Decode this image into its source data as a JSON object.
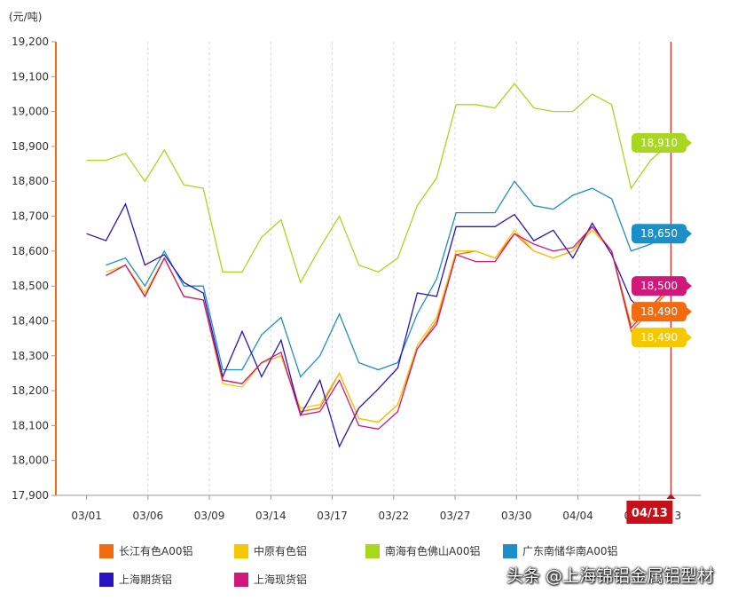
{
  "chart_data": {
    "type": "line",
    "unit_label": "(元/吨)",
    "ylim": [
      17900,
      19200
    ],
    "y_ticks": [
      17900,
      18000,
      18100,
      18200,
      18300,
      18400,
      18500,
      18600,
      18700,
      18800,
      18900,
      19000,
      19100,
      19200
    ],
    "y_tick_labels": [
      "17,900",
      "18,000",
      "18,100",
      "18,200",
      "18,300",
      "18,400",
      "18,500",
      "18,600",
      "18,700",
      "18,800",
      "18,900",
      "19,000",
      "19,100",
      "19,200"
    ],
    "x_tick_labels": [
      "03/01",
      "03/06",
      "03/09",
      "03/14",
      "03/17",
      "03/22",
      "03/27",
      "03/30",
      "04/04",
      "04/10"
    ],
    "x_tick_positions": [
      0,
      2,
      4,
      6,
      8,
      10,
      12,
      14,
      16,
      18
    ],
    "x_range": [
      -1,
      20
    ],
    "current_date": "04/13",
    "current_date_trailing": "3",
    "series": [
      {
        "name": "长江有色A00铝",
        "color": "#f26c0f",
        "values": [
          null,
          18530,
          18560,
          18470,
          18580,
          18470,
          18460,
          18230,
          18220,
          18280,
          18300,
          18140,
          18150,
          18250,
          18120,
          18110,
          18160,
          18320,
          18400,
          18590,
          18600,
          18580,
          18650,
          18600,
          18580,
          18600,
          18670,
          18600,
          18370,
          18430,
          18490
        ],
        "end_label": "18,490"
      },
      {
        "name": "中原有色铝",
        "color": "#f5c800",
        "values": [
          null,
          18540,
          18560,
          18480,
          18580,
          18470,
          18460,
          18220,
          18210,
          18280,
          18300,
          18150,
          18160,
          18250,
          18120,
          18110,
          18160,
          18330,
          18410,
          18600,
          18600,
          18580,
          18660,
          18600,
          18580,
          18600,
          18660,
          18600,
          18390,
          18440,
          18490
        ],
        "end_label": "18,490"
      },
      {
        "name": "南海有色佛山A00铝",
        "color": "#a8d81e",
        "values": [
          18860,
          18860,
          18880,
          18800,
          18890,
          18790,
          18780,
          18540,
          18540,
          18640,
          18690,
          18510,
          18610,
          18700,
          18560,
          18540,
          18580,
          18730,
          18810,
          19020,
          19020,
          19010,
          19080,
          19010,
          19000,
          19000,
          19050,
          19020,
          18780,
          18860,
          18910
        ],
        "end_label": "18,910"
      },
      {
        "name": "广东南储华南A00铝",
        "color": "#1a8fc9",
        "values": [
          null,
          18560,
          18580,
          18500,
          18600,
          18500,
          18500,
          18260,
          18260,
          18360,
          18410,
          18240,
          18300,
          18420,
          18280,
          18260,
          18280,
          18420,
          18520,
          18710,
          18710,
          18710,
          18800,
          18730,
          18720,
          18760,
          18780,
          18750,
          18600,
          18620,
          18650
        ],
        "end_label": "18,650"
      },
      {
        "name": "上海期货铝",
        "color": "#2a12c0",
        "values": [
          18650,
          18630,
          18735,
          18560,
          18590,
          18510,
          18480,
          18240,
          18370,
          18240,
          18345,
          18130,
          18230,
          18040,
          18150,
          18205,
          18265,
          18480,
          18470,
          18670,
          18670,
          18670,
          18705,
          18630,
          18660,
          18580,
          18680,
          18590,
          18460,
          18410,
          null
        ],
        "end_label": ""
      },
      {
        "name": "上海现货铝",
        "color": "#d0187a",
        "values": [
          null,
          18530,
          18560,
          18470,
          18580,
          18470,
          18460,
          18230,
          18220,
          18280,
          18310,
          18130,
          18140,
          18230,
          18100,
          18090,
          18140,
          18320,
          18390,
          18590,
          18570,
          18570,
          18650,
          18620,
          18600,
          18610,
          18670,
          18600,
          18380,
          18440,
          18500
        ],
        "end_label": "18,500"
      }
    ],
    "legend_placement": "bottom",
    "grid": {
      "x": true,
      "y": false
    }
  },
  "watermark": "头条 @上海锦铝金属铝型材"
}
